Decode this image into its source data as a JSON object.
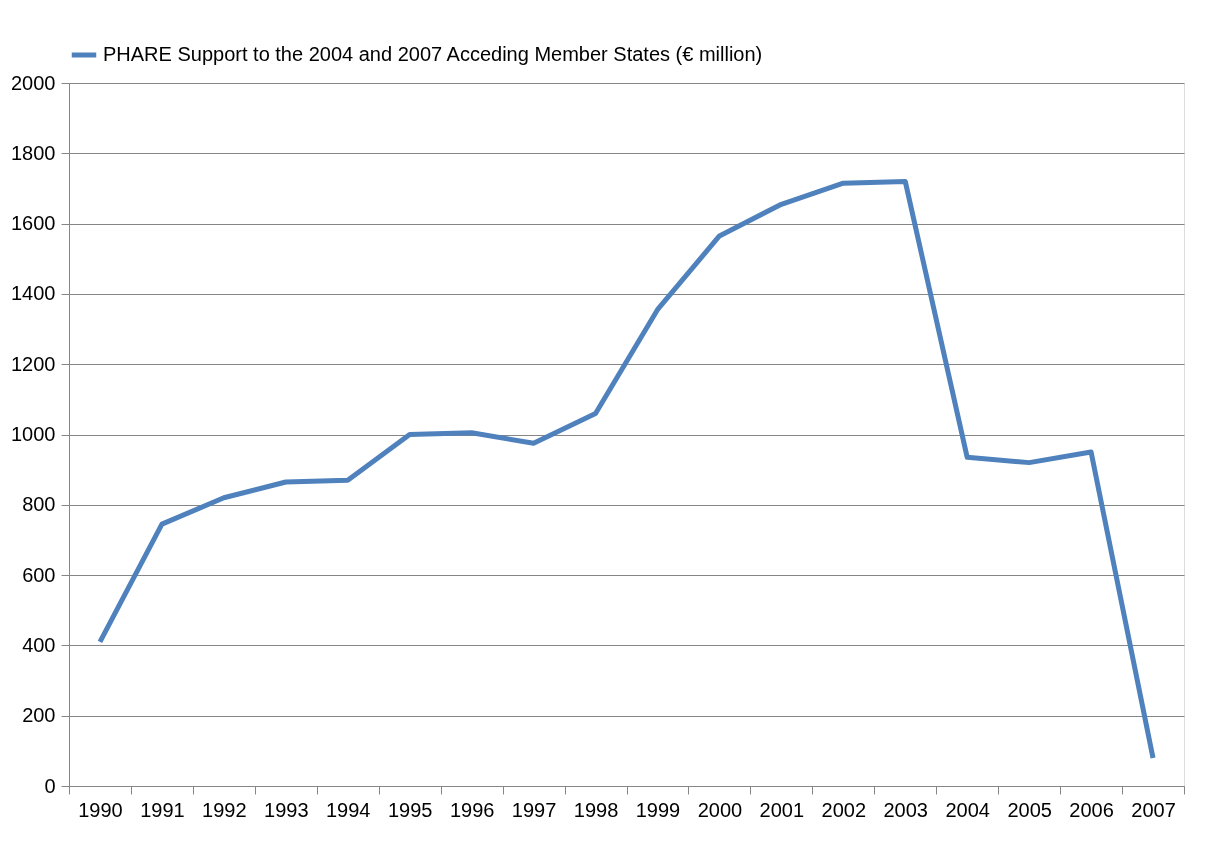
{
  "chart_data": {
    "type": "line",
    "categories": [
      "1990",
      "1991",
      "1992",
      "1993",
      "1994",
      "1995",
      "1996",
      "1997",
      "1998",
      "1999",
      "2000",
      "2001",
      "2002",
      "2003",
      "2004",
      "2005",
      "2006",
      "2007"
    ],
    "series": [
      {
        "name": "PHARE Support to the 2004 and 2007 Acceding Member States (€ million)",
        "color": "#4f81bd",
        "values": [
          410,
          745,
          820,
          865,
          870,
          1000,
          1005,
          975,
          1060,
          1355,
          1565,
          1655,
          1715,
          1720,
          935,
          920,
          950,
          80
        ]
      }
    ],
    "ylim": [
      0,
      2000
    ],
    "yticks": [
      0,
      200,
      400,
      600,
      800,
      1000,
      1200,
      1400,
      1600,
      1800,
      2000
    ],
    "grid": "y",
    "legend": "top",
    "marker": "none",
    "line_style": "solid"
  }
}
